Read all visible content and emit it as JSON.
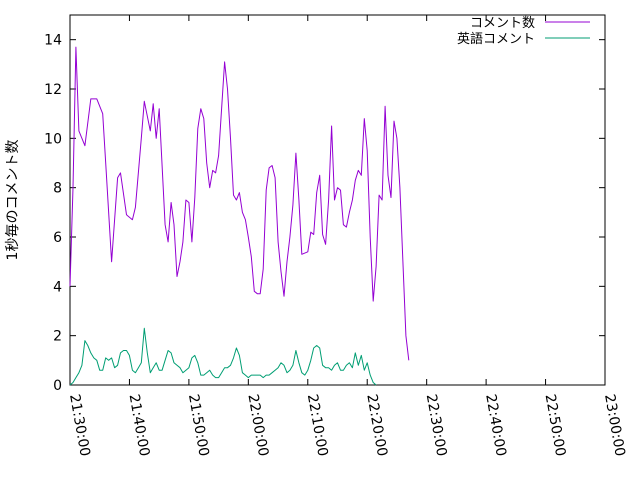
{
  "chart_data": {
    "type": "line",
    "ylabel": "1秒毎のコメント数",
    "xlabel": "",
    "ylim": [
      0,
      15
    ],
    "yticks": [
      0,
      2,
      4,
      6,
      8,
      10,
      12,
      14
    ],
    "xtick_labels": [
      "21:30:00",
      "21:40:00",
      "21:50:00",
      "22:00:00",
      "22:10:00",
      "22:20:00",
      "22:30:00",
      "22:40:00",
      "22:50:00",
      "23:00:00"
    ],
    "x_range_minutes": [
      0,
      90
    ],
    "grid": false,
    "legend_position": "top-right",
    "series": [
      {
        "name": "コメント数",
        "color": "#9400d3",
        "points": [
          [
            0,
            4.0
          ],
          [
            0.5,
            8.0
          ],
          [
            1,
            13.7
          ],
          [
            1.5,
            10.3
          ],
          [
            2.5,
            9.7
          ],
          [
            3.5,
            11.6
          ],
          [
            4.5,
            11.6
          ],
          [
            5.5,
            11.0
          ],
          [
            6,
            9.0
          ],
          [
            7,
            5.0
          ],
          [
            8,
            8.4
          ],
          [
            8.5,
            8.6
          ],
          [
            9.5,
            6.9
          ],
          [
            10.5,
            6.7
          ],
          [
            11,
            7.2
          ],
          [
            12,
            10.0
          ],
          [
            12.5,
            11.5
          ],
          [
            13.5,
            10.3
          ],
          [
            14,
            11.4
          ],
          [
            14.5,
            10.0
          ],
          [
            15,
            11.2
          ],
          [
            16,
            6.5
          ],
          [
            16.5,
            5.8
          ],
          [
            17,
            7.4
          ],
          [
            17.5,
            6.5
          ],
          [
            18,
            4.4
          ],
          [
            18.5,
            5.0
          ],
          [
            19,
            5.8
          ],
          [
            19.5,
            7.5
          ],
          [
            20,
            7.4
          ],
          [
            20.5,
            5.8
          ],
          [
            21,
            7.6
          ],
          [
            21.5,
            10.4
          ],
          [
            22,
            11.2
          ],
          [
            22.5,
            10.8
          ],
          [
            23,
            9.0
          ],
          [
            23.5,
            8.0
          ],
          [
            24,
            8.7
          ],
          [
            24.5,
            8.6
          ],
          [
            25,
            9.3
          ],
          [
            25.5,
            11.2
          ],
          [
            26,
            13.1
          ],
          [
            26.5,
            12.0
          ],
          [
            27,
            10.0
          ],
          [
            27.5,
            7.7
          ],
          [
            28,
            7.5
          ],
          [
            28.5,
            7.8
          ],
          [
            29,
            7.0
          ],
          [
            29.5,
            6.7
          ],
          [
            30,
            6.0
          ],
          [
            30.5,
            5.2
          ],
          [
            31,
            3.8
          ],
          [
            31.5,
            3.7
          ],
          [
            32,
            3.7
          ],
          [
            32.5,
            4.7
          ],
          [
            33,
            7.9
          ],
          [
            33.5,
            8.8
          ],
          [
            34,
            8.9
          ],
          [
            34.5,
            8.4
          ],
          [
            35,
            5.8
          ],
          [
            35.5,
            4.6
          ],
          [
            36,
            3.6
          ],
          [
            36.5,
            5.0
          ],
          [
            37,
            6.0
          ],
          [
            37.5,
            7.3
          ],
          [
            38,
            9.4
          ],
          [
            38.5,
            7.5
          ],
          [
            39,
            5.3
          ],
          [
            40,
            5.4
          ],
          [
            40.5,
            6.2
          ],
          [
            41,
            6.1
          ],
          [
            41.5,
            7.8
          ],
          [
            42,
            8.5
          ],
          [
            42.5,
            6.1
          ],
          [
            43,
            5.7
          ],
          [
            43.5,
            7.5
          ],
          [
            44,
            10.5
          ],
          [
            44.5,
            7.5
          ],
          [
            45,
            8.0
          ],
          [
            45.5,
            7.9
          ],
          [
            46,
            6.5
          ],
          [
            46.5,
            6.4
          ],
          [
            47,
            7.0
          ],
          [
            47.5,
            7.5
          ],
          [
            48,
            8.3
          ],
          [
            48.5,
            8.7
          ],
          [
            49,
            8.5
          ],
          [
            49.5,
            10.8
          ],
          [
            50,
            9.5
          ],
          [
            50.5,
            6.0
          ],
          [
            51,
            3.4
          ],
          [
            51.5,
            4.8
          ],
          [
            52,
            7.7
          ],
          [
            52.5,
            7.5
          ],
          [
            53,
            11.3
          ],
          [
            53.5,
            8.5
          ],
          [
            54,
            7.6
          ],
          [
            54.5,
            10.7
          ],
          [
            55,
            10.0
          ],
          [
            55.5,
            8.0
          ],
          [
            56,
            5.0
          ],
          [
            56.5,
            2.0
          ],
          [
            57,
            1.0
          ]
        ]
      },
      {
        "name": "英語コメント",
        "color": "#009e73",
        "points": [
          [
            0,
            0.0
          ],
          [
            0.5,
            0.1
          ],
          [
            1,
            0.3
          ],
          [
            1.5,
            0.5
          ],
          [
            2,
            0.8
          ],
          [
            2.5,
            1.8
          ],
          [
            3,
            1.6
          ],
          [
            3.5,
            1.3
          ],
          [
            4,
            1.1
          ],
          [
            4.5,
            1.0
          ],
          [
            5,
            0.6
          ],
          [
            5.5,
            0.6
          ],
          [
            6,
            1.1
          ],
          [
            6.5,
            1.0
          ],
          [
            7,
            1.1
          ],
          [
            7.5,
            0.7
          ],
          [
            8,
            0.8
          ],
          [
            8.5,
            1.3
          ],
          [
            9,
            1.4
          ],
          [
            9.5,
            1.4
          ],
          [
            10,
            1.2
          ],
          [
            10.5,
            0.6
          ],
          [
            11,
            0.5
          ],
          [
            11.5,
            0.7
          ],
          [
            12,
            0.9
          ],
          [
            12.5,
            2.3
          ],
          [
            13,
            1.3
          ],
          [
            13.5,
            0.5
          ],
          [
            14,
            0.7
          ],
          [
            14.5,
            0.9
          ],
          [
            15,
            0.6
          ],
          [
            15.5,
            0.6
          ],
          [
            16,
            1.0
          ],
          [
            16.5,
            1.4
          ],
          [
            17,
            1.3
          ],
          [
            17.5,
            0.9
          ],
          [
            18,
            0.8
          ],
          [
            18.5,
            0.7
          ],
          [
            19,
            0.5
          ],
          [
            19.5,
            0.6
          ],
          [
            20,
            0.7
          ],
          [
            20.5,
            1.1
          ],
          [
            21,
            1.2
          ],
          [
            21.5,
            0.9
          ],
          [
            22,
            0.4
          ],
          [
            22.5,
            0.4
          ],
          [
            23,
            0.5
          ],
          [
            23.5,
            0.6
          ],
          [
            24,
            0.4
          ],
          [
            24.5,
            0.3
          ],
          [
            25,
            0.3
          ],
          [
            25.5,
            0.5
          ],
          [
            26,
            0.7
          ],
          [
            26.5,
            0.7
          ],
          [
            27,
            0.8
          ],
          [
            27.5,
            1.1
          ],
          [
            28,
            1.5
          ],
          [
            28.5,
            1.2
          ],
          [
            29,
            0.5
          ],
          [
            29.5,
            0.4
          ],
          [
            30,
            0.3
          ],
          [
            30.5,
            0.4
          ],
          [
            31,
            0.4
          ],
          [
            31.5,
            0.4
          ],
          [
            32,
            0.4
          ],
          [
            32.5,
            0.3
          ],
          [
            33,
            0.4
          ],
          [
            33.5,
            0.4
          ],
          [
            34,
            0.5
          ],
          [
            34.5,
            0.6
          ],
          [
            35,
            0.7
          ],
          [
            35.5,
            0.9
          ],
          [
            36,
            0.8
          ],
          [
            36.5,
            0.5
          ],
          [
            37,
            0.6
          ],
          [
            37.5,
            0.8
          ],
          [
            38,
            1.4
          ],
          [
            38.5,
            0.9
          ],
          [
            39,
            0.5
          ],
          [
            39.5,
            0.4
          ],
          [
            40,
            0.6
          ],
          [
            40.5,
            1.0
          ],
          [
            41,
            1.5
          ],
          [
            41.5,
            1.6
          ],
          [
            42,
            1.5
          ],
          [
            42.5,
            0.8
          ],
          [
            43,
            0.7
          ],
          [
            43.5,
            0.7
          ],
          [
            44,
            0.6
          ],
          [
            44.5,
            0.8
          ],
          [
            45,
            0.9
          ],
          [
            45.5,
            0.6
          ],
          [
            46,
            0.6
          ],
          [
            46.5,
            0.8
          ],
          [
            47,
            0.9
          ],
          [
            47.5,
            0.7
          ],
          [
            48,
            1.3
          ],
          [
            48.5,
            0.8
          ],
          [
            49,
            1.2
          ],
          [
            49.5,
            0.6
          ],
          [
            50,
            0.9
          ],
          [
            50.5,
            0.4
          ],
          [
            51,
            0.1
          ],
          [
            51.5,
            0.0
          ]
        ]
      }
    ]
  }
}
